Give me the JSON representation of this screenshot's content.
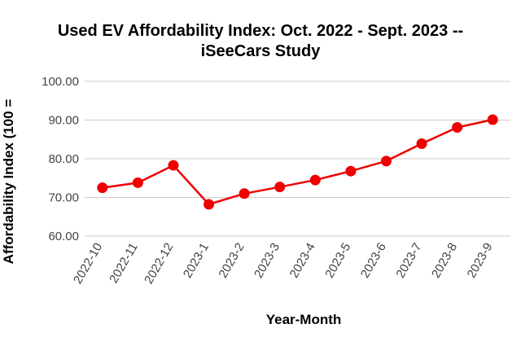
{
  "chart_data": {
    "type": "line",
    "title_lines": [
      "Used EV Affordability Index: Oct. 2022 - Sept. 2023 --",
      "iSeeCars Study"
    ],
    "xlabel": "Year-Month",
    "ylabel": "Affordability Index (100 =",
    "ylim": [
      60,
      100
    ],
    "yticks": [
      "60.00",
      "70.00",
      "80.00",
      "90.00",
      "100.00"
    ],
    "grid": true,
    "legend": "none",
    "categories": [
      "2022-10",
      "2022-11",
      "2022-12",
      "2023-1",
      "2023-2",
      "2023-3",
      "2023-4",
      "2023-5",
      "2023-6",
      "2023-7",
      "2023-8",
      "2023-9"
    ],
    "series": [
      {
        "name": "Affordability Index",
        "color": "#ee0000",
        "values": [
          72.5,
          73.8,
          78.3,
          68.2,
          71.0,
          72.7,
          74.5,
          76.8,
          79.4,
          83.9,
          88.1,
          90.1
        ]
      }
    ]
  }
}
